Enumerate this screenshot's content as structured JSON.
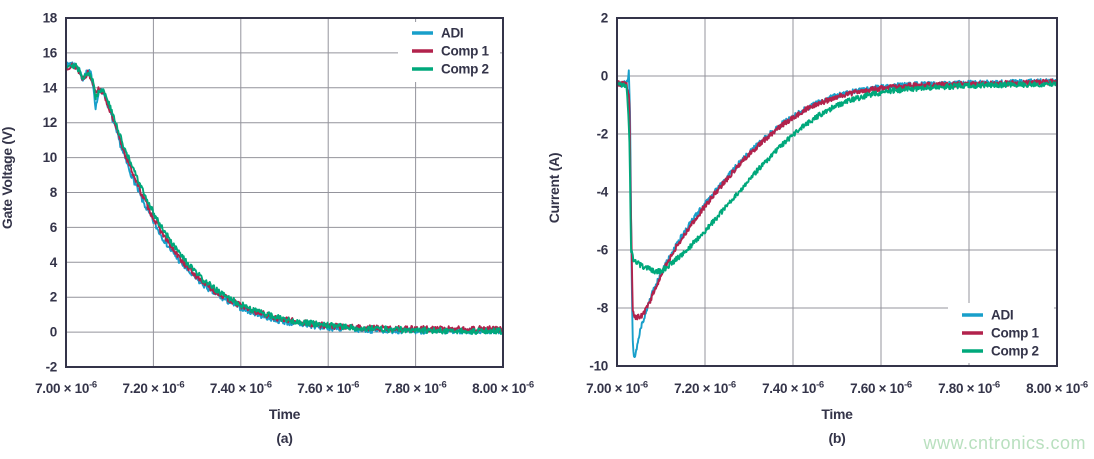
{
  "watermark": {
    "text": "www.cntronics.com",
    "color": "#b9e0bf"
  },
  "styles": {
    "background": "#ffffff",
    "text_color": "#343449",
    "frame_color": "#343449",
    "grid_color": "#94949c",
    "adi_blue": "#189fca",
    "comp1_crimson": "#b2224c",
    "comp2_green": "#00a87b"
  },
  "chart_data": [
    {
      "id": "a",
      "type": "line",
      "caption": "(a)",
      "xlabel": "Time",
      "ylabel": "Gate Voltage (V)",
      "xlim": [
        7.0,
        8.0
      ],
      "ylim": [
        -2,
        18
      ],
      "grid": true,
      "legend_position": "top-right",
      "legend_entries": [
        "ADI",
        "Comp 1",
        "Comp 2"
      ],
      "x_ticks": [
        {
          "m": "7.00 × 10",
          "e": "-6",
          "v": 7.0
        },
        {
          "m": "7.20 × 10",
          "e": "-6",
          "v": 7.2
        },
        {
          "m": "7.40 × 10",
          "e": "-6",
          "v": 7.4
        },
        {
          "m": "7.60 × 10",
          "e": "-6",
          "v": 7.6
        },
        {
          "m": "7.80 × 10",
          "e": "-6",
          "v": 7.8
        },
        {
          "m": "8.00 × 10",
          "e": "-6",
          "v": 8.0
        }
      ],
      "y_ticks": [
        18,
        16,
        14,
        12,
        10,
        8,
        6,
        4,
        2,
        0,
        -2
      ],
      "series": [
        {
          "name": "ADI",
          "color": "#189fca",
          "noise": 0.17,
          "seed": 7,
          "points": [
            [
              7.0,
              15.2
            ],
            [
              7.01,
              15.45
            ],
            [
              7.02,
              15.3
            ],
            [
              7.03,
              15.0
            ],
            [
              7.038,
              14.5
            ],
            [
              7.048,
              14.9
            ],
            [
              7.056,
              14.85
            ],
            [
              7.062,
              14.2
            ],
            [
              7.068,
              12.85
            ],
            [
              7.074,
              13.6
            ],
            [
              7.082,
              14.0
            ],
            [
              7.092,
              13.3
            ],
            [
              7.105,
              12.3
            ],
            [
              7.115,
              11.5
            ],
            [
              7.13,
              10.3
            ],
            [
              7.145,
              9.3
            ],
            [
              7.16,
              8.4
            ],
            [
              7.175,
              7.55
            ],
            [
              7.19,
              6.8
            ],
            [
              7.205,
              6.1
            ],
            [
              7.22,
              5.45
            ],
            [
              7.24,
              4.7
            ],
            [
              7.26,
              4.05
            ],
            [
              7.28,
              3.5
            ],
            [
              7.3,
              3.0
            ],
            [
              7.325,
              2.5
            ],
            [
              7.35,
              2.05
            ],
            [
              7.375,
              1.7
            ],
            [
              7.4,
              1.4
            ],
            [
              7.43,
              1.1
            ],
            [
              7.46,
              0.85
            ],
            [
              7.49,
              0.65
            ],
            [
              7.52,
              0.5
            ],
            [
              7.56,
              0.36
            ],
            [
              7.6,
              0.26
            ],
            [
              7.65,
              0.18
            ],
            [
              7.7,
              0.12
            ],
            [
              7.78,
              0.08
            ],
            [
              7.86,
              0.05
            ],
            [
              7.93,
              0.06
            ],
            [
              8.0,
              0.08
            ]
          ]
        },
        {
          "name": "Comp 1",
          "color": "#b2224c",
          "noise": 0.17,
          "seed": 13,
          "points": [
            [
              7.0,
              15.15
            ],
            [
              7.012,
              15.3
            ],
            [
              7.025,
              15.15
            ],
            [
              7.038,
              14.55
            ],
            [
              7.05,
              14.85
            ],
            [
              7.062,
              14.3
            ],
            [
              7.068,
              13.85
            ],
            [
              7.076,
              13.9
            ],
            [
              7.085,
              13.75
            ],
            [
              7.095,
              13.1
            ],
            [
              7.11,
              12.0
            ],
            [
              7.125,
              10.9
            ],
            [
              7.14,
              9.9
            ],
            [
              7.155,
              9.0
            ],
            [
              7.17,
              8.1
            ],
            [
              7.185,
              7.3
            ],
            [
              7.2,
              6.55
            ],
            [
              7.215,
              5.9
            ],
            [
              7.23,
              5.3
            ],
            [
              7.25,
              4.55
            ],
            [
              7.27,
              3.95
            ],
            [
              7.29,
              3.4
            ],
            [
              7.31,
              2.95
            ],
            [
              7.335,
              2.45
            ],
            [
              7.36,
              2.05
            ],
            [
              7.385,
              1.7
            ],
            [
              7.41,
              1.4
            ],
            [
              7.44,
              1.12
            ],
            [
              7.47,
              0.9
            ],
            [
              7.5,
              0.72
            ],
            [
              7.54,
              0.55
            ],
            [
              7.58,
              0.42
            ],
            [
              7.63,
              0.3
            ],
            [
              7.68,
              0.24
            ],
            [
              7.75,
              0.2
            ],
            [
              7.83,
              0.18
            ],
            [
              7.91,
              0.18
            ],
            [
              8.0,
              0.18
            ]
          ]
        },
        {
          "name": "Comp 2",
          "color": "#00a87b",
          "noise": 0.17,
          "seed": 29,
          "points": [
            [
              7.0,
              15.25
            ],
            [
              7.012,
              15.35
            ],
            [
              7.025,
              15.2
            ],
            [
              7.038,
              14.6
            ],
            [
              7.05,
              14.9
            ],
            [
              7.062,
              14.35
            ],
            [
              7.068,
              13.45
            ],
            [
              7.076,
              13.85
            ],
            [
              7.085,
              13.9
            ],
            [
              7.098,
              13.1
            ],
            [
              7.112,
              12.1
            ],
            [
              7.127,
              11.0
            ],
            [
              7.142,
              10.05
            ],
            [
              7.157,
              9.15
            ],
            [
              7.172,
              8.3
            ],
            [
              7.187,
              7.5
            ],
            [
              7.202,
              6.75
            ],
            [
              7.217,
              6.1
            ],
            [
              7.232,
              5.5
            ],
            [
              7.252,
              4.75
            ],
            [
              7.272,
              4.1
            ],
            [
              7.292,
              3.55
            ],
            [
              7.312,
              3.05
            ],
            [
              7.337,
              2.55
            ],
            [
              7.362,
              2.1
            ],
            [
              7.387,
              1.75
            ],
            [
              7.412,
              1.45
            ],
            [
              7.442,
              1.15
            ],
            [
              7.472,
              0.92
            ],
            [
              7.502,
              0.73
            ],
            [
              7.542,
              0.55
            ],
            [
              7.582,
              0.42
            ],
            [
              7.632,
              0.3
            ],
            [
              7.692,
              0.2
            ],
            [
              7.772,
              0.13
            ],
            [
              7.852,
              0.08
            ],
            [
              7.932,
              0.05
            ],
            [
              8.0,
              0.06
            ]
          ]
        }
      ]
    },
    {
      "id": "b",
      "type": "line",
      "caption": "(b)",
      "xlabel": "Time",
      "ylabel": "Current (A)",
      "xlim": [
        7.0,
        8.0
      ],
      "ylim": [
        -10,
        2
      ],
      "grid": true,
      "legend_position": "bottom-right",
      "legend_entries": [
        "ADI",
        "Comp 1",
        "Comp 2"
      ],
      "x_ticks": [
        {
          "m": "7.00 × 10",
          "e": "-6",
          "v": 7.0
        },
        {
          "m": "7.20 × 10",
          "e": "-6",
          "v": 7.2
        },
        {
          "m": "7.40 × 10",
          "e": "-6",
          "v": 7.4
        },
        {
          "m": "7.60 × 10",
          "e": "-6",
          "v": 7.6
        },
        {
          "m": "7.80 × 10",
          "e": "-6",
          "v": 7.8
        },
        {
          "m": "8.00 × 10",
          "e": "-6",
          "v": 8.0
        }
      ],
      "y_ticks": [
        2,
        0,
        -2,
        -4,
        -6,
        -8,
        -10
      ],
      "series": [
        {
          "name": "ADI",
          "color": "#189fca",
          "noise": 0.09,
          "seed": 41,
          "points": [
            [
              7.0,
              -0.25
            ],
            [
              7.01,
              -0.3
            ],
            [
              7.018,
              -0.25
            ],
            [
              7.024,
              -0.2
            ],
            [
              7.027,
              0.2
            ],
            [
              7.03,
              -1.5
            ],
            [
              7.033,
              -6.5
            ],
            [
              7.036,
              -9.3
            ],
            [
              7.04,
              -9.75
            ],
            [
              7.046,
              -9.3
            ],
            [
              7.052,
              -8.8
            ],
            [
              7.058,
              -8.5
            ],
            [
              7.065,
              -8.15
            ],
            [
              7.072,
              -7.85
            ],
            [
              7.08,
              -7.5
            ],
            [
              7.09,
              -7.15
            ],
            [
              7.1,
              -6.8
            ],
            [
              7.112,
              -6.45
            ],
            [
              7.125,
              -6.1
            ],
            [
              7.14,
              -5.7
            ],
            [
              7.155,
              -5.35
            ],
            [
              7.17,
              -5.0
            ],
            [
              7.19,
              -4.6
            ],
            [
              7.21,
              -4.2
            ],
            [
              7.23,
              -3.85
            ],
            [
              7.25,
              -3.5
            ],
            [
              7.275,
              -3.05
            ],
            [
              7.3,
              -2.65
            ],
            [
              7.325,
              -2.3
            ],
            [
              7.35,
              -1.95
            ],
            [
              7.375,
              -1.65
            ],
            [
              7.4,
              -1.4
            ],
            [
              7.43,
              -1.12
            ],
            [
              7.46,
              -0.9
            ],
            [
              7.49,
              -0.73
            ],
            [
              7.52,
              -0.6
            ],
            [
              7.56,
              -0.47
            ],
            [
              7.6,
              -0.38
            ],
            [
              7.65,
              -0.32
            ],
            [
              7.72,
              -0.27
            ],
            [
              7.8,
              -0.25
            ],
            [
              7.9,
              -0.22
            ],
            [
              8.0,
              -0.18
            ]
          ]
        },
        {
          "name": "Comp 1",
          "color": "#b2224c",
          "noise": 0.09,
          "seed": 53,
          "points": [
            [
              7.0,
              -0.25
            ],
            [
              7.012,
              -0.28
            ],
            [
              7.022,
              -0.3
            ],
            [
              7.028,
              -0.8
            ],
            [
              7.032,
              -5.0
            ],
            [
              7.036,
              -8.1
            ],
            [
              7.042,
              -8.35
            ],
            [
              7.05,
              -8.3
            ],
            [
              7.058,
              -8.25
            ],
            [
              7.066,
              -8.05
            ],
            [
              7.074,
              -7.8
            ],
            [
              7.082,
              -7.5
            ],
            [
              7.092,
              -7.15
            ],
            [
              7.104,
              -6.75
            ],
            [
              7.118,
              -6.35
            ],
            [
              7.132,
              -5.95
            ],
            [
              7.148,
              -5.6
            ],
            [
              7.165,
              -5.2
            ],
            [
              7.185,
              -4.8
            ],
            [
              7.205,
              -4.4
            ],
            [
              7.225,
              -4.0
            ],
            [
              7.25,
              -3.55
            ],
            [
              7.275,
              -3.1
            ],
            [
              7.3,
              -2.7
            ],
            [
              7.325,
              -2.35
            ],
            [
              7.35,
              -2.0
            ],
            [
              7.375,
              -1.7
            ],
            [
              7.4,
              -1.45
            ],
            [
              7.43,
              -1.15
            ],
            [
              7.46,
              -0.95
            ],
            [
              7.49,
              -0.77
            ],
            [
              7.52,
              -0.63
            ],
            [
              7.56,
              -0.5
            ],
            [
              7.6,
              -0.42
            ],
            [
              7.65,
              -0.35
            ],
            [
              7.72,
              -0.3
            ],
            [
              7.8,
              -0.28
            ],
            [
              7.9,
              -0.25
            ],
            [
              8.0,
              -0.2
            ]
          ]
        },
        {
          "name": "Comp 2",
          "color": "#00a87b",
          "noise": 0.09,
          "seed": 67,
          "points": [
            [
              7.0,
              -0.25
            ],
            [
              7.012,
              -0.3
            ],
            [
              7.022,
              -0.35
            ],
            [
              7.028,
              -2.0
            ],
            [
              7.032,
              -6.0
            ],
            [
              7.038,
              -6.35
            ],
            [
              7.046,
              -6.45
            ],
            [
              7.056,
              -6.55
            ],
            [
              7.068,
              -6.62
            ],
            [
              7.08,
              -6.7
            ],
            [
              7.092,
              -6.75
            ],
            [
              7.104,
              -6.7
            ],
            [
              7.116,
              -6.55
            ],
            [
              7.128,
              -6.4
            ],
            [
              7.14,
              -6.25
            ],
            [
              7.152,
              -6.1
            ],
            [
              7.165,
              -5.9
            ],
            [
              7.18,
              -5.65
            ],
            [
              7.2,
              -5.35
            ],
            [
              7.22,
              -5.0
            ],
            [
              7.24,
              -4.65
            ],
            [
              7.26,
              -4.3
            ],
            [
              7.285,
              -3.85
            ],
            [
              7.31,
              -3.4
            ],
            [
              7.335,
              -3.0
            ],
            [
              7.36,
              -2.6
            ],
            [
              7.385,
              -2.25
            ],
            [
              7.41,
              -1.9
            ],
            [
              7.44,
              -1.55
            ],
            [
              7.47,
              -1.25
            ],
            [
              7.5,
              -1.02
            ],
            [
              7.53,
              -0.84
            ],
            [
              7.57,
              -0.66
            ],
            [
              7.61,
              -0.54
            ],
            [
              7.66,
              -0.45
            ],
            [
              7.73,
              -0.38
            ],
            [
              7.8,
              -0.33
            ],
            [
              7.9,
              -0.3
            ],
            [
              8.0,
              -0.27
            ]
          ]
        }
      ]
    }
  ]
}
